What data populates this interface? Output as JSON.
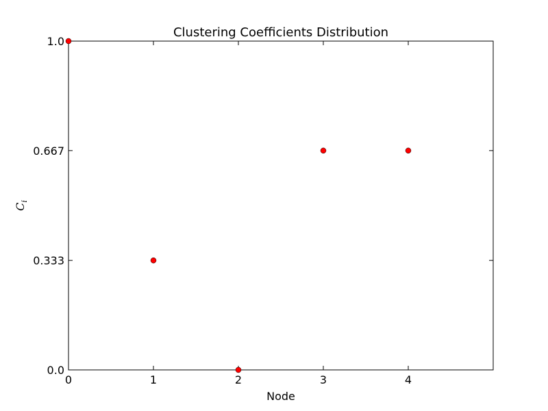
{
  "chart_data": {
    "type": "scatter",
    "title": "Clustering Coefficients Distribution",
    "xlabel": "Node",
    "ylabel": {
      "symbol": "C",
      "subscript": "i"
    },
    "x": [
      0,
      1,
      2,
      3,
      4
    ],
    "y": [
      1.0,
      0.333,
      0.0,
      0.667,
      0.667
    ],
    "xlim": [
      0,
      5
    ],
    "ylim": [
      0,
      1
    ],
    "xticks": [
      {
        "value": 0,
        "label": "0"
      },
      {
        "value": 1,
        "label": "1"
      },
      {
        "value": 2,
        "label": "2"
      },
      {
        "value": 3,
        "label": "3"
      },
      {
        "value": 4,
        "label": "4"
      }
    ],
    "yticks": [
      {
        "value": 0.0,
        "label": "0.0"
      },
      {
        "value": 0.333,
        "label": "0.333"
      },
      {
        "value": 0.667,
        "label": "0.667"
      },
      {
        "value": 1.0,
        "label": "1.0"
      }
    ],
    "marker_color": "#ff0000",
    "marker_edge_color": "#000000",
    "grid": false,
    "legend": "none"
  }
}
